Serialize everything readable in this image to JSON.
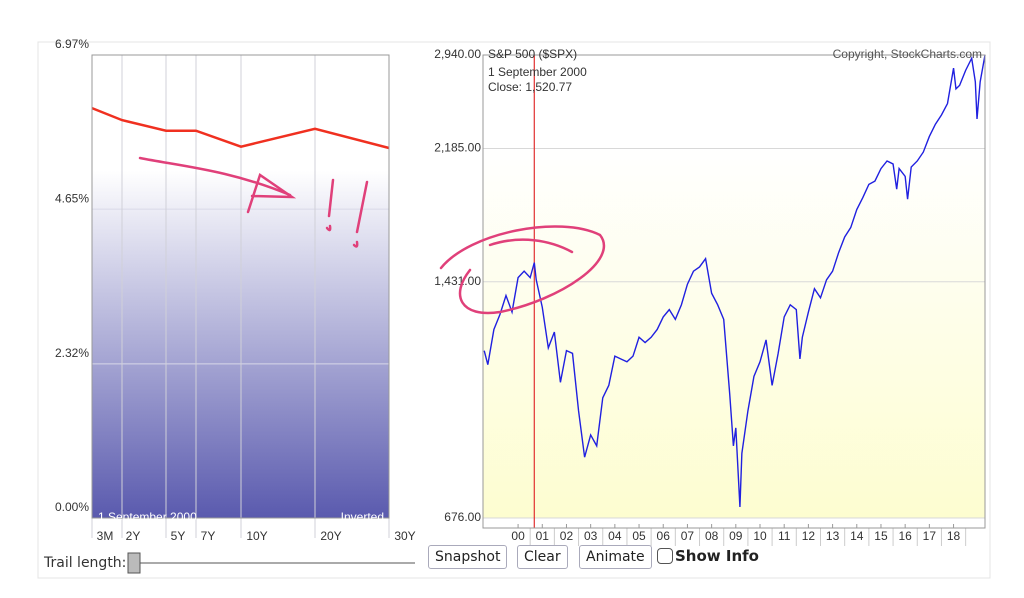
{
  "chart_data": [
    {
      "type": "line",
      "categories": [
        "3M",
        "2Y",
        "5Y",
        "7Y",
        "10Y",
        "20Y",
        "30Y"
      ],
      "values": [
        6.17,
        5.99,
        5.83,
        5.83,
        5.59,
        5.86,
        5.57
      ],
      "color": "#f03020",
      "ylim": [
        0,
        6.97
      ],
      "yticks": [
        {
          "value": 0,
          "label": "0.00%"
        },
        {
          "value": 2.32,
          "label": "2.32%"
        },
        {
          "value": 4.65,
          "label": "4.65%"
        },
        {
          "value": 6.97,
          "label": "6.97%"
        }
      ],
      "grid": true,
      "date_label": "1  September 2000",
      "mode_label": "Inverted"
    },
    {
      "type": "line",
      "title": "S&P 500 ($SPX)",
      "copyright": "Copyright, StockCharts.com",
      "date_label": "1  September 2000",
      "close_label": "Close: 1,520.77",
      "cursor_x": 2000.67,
      "x": [
        1998.6,
        1998.75,
        1999.0,
        1999.25,
        1999.5,
        1999.75,
        2000.0,
        2000.25,
        2000.5,
        2000.67,
        2000.75,
        2001.0,
        2001.25,
        2001.5,
        2001.75,
        2002.0,
        2002.25,
        2002.5,
        2002.75,
        2003.0,
        2003.25,
        2003.5,
        2003.75,
        2004.0,
        2004.25,
        2004.5,
        2004.75,
        2005.0,
        2005.25,
        2005.5,
        2005.75,
        2006.0,
        2006.25,
        2006.5,
        2006.75,
        2007.0,
        2007.25,
        2007.5,
        2007.75,
        2008.0,
        2008.25,
        2008.5,
        2008.75,
        2008.9,
        2009.0,
        2009.17,
        2009.25,
        2009.5,
        2009.75,
        2010.0,
        2010.25,
        2010.5,
        2010.75,
        2011.0,
        2011.25,
        2011.5,
        2011.65,
        2011.75,
        2012.0,
        2012.25,
        2012.5,
        2012.75,
        2013.0,
        2013.25,
        2013.5,
        2013.75,
        2014.0,
        2014.25,
        2014.5,
        2014.75,
        2015.0,
        2015.25,
        2015.5,
        2015.65,
        2015.75,
        2016.0,
        2016.1,
        2016.25,
        2016.5,
        2016.75,
        2017.0,
        2017.25,
        2017.5,
        2017.75,
        2018.0,
        2018.1,
        2018.25,
        2018.5,
        2018.75,
        2018.9,
        2018.97,
        2019.1,
        2019.3
      ],
      "values": [
        1150,
        1100,
        1230,
        1290,
        1370,
        1300,
        1450,
        1480,
        1450,
        1520.77,
        1440,
        1320,
        1160,
        1220,
        1040,
        1150,
        1140,
        950,
        820,
        880,
        850,
        990,
        1030,
        1130,
        1120,
        1110,
        1130,
        1200,
        1180,
        1200,
        1230,
        1280,
        1310,
        1270,
        1330,
        1420,
        1480,
        1500,
        1540,
        1380,
        1330,
        1270,
        1000,
        850,
        900,
        700,
        830,
        950,
        1060,
        1110,
        1190,
        1030,
        1140,
        1280,
        1330,
        1310,
        1120,
        1200,
        1300,
        1400,
        1360,
        1440,
        1480,
        1570,
        1650,
        1700,
        1800,
        1870,
        1950,
        1970,
        2050,
        2100,
        2080,
        1920,
        2050,
        2000,
        1860,
        2060,
        2100,
        2160,
        2270,
        2360,
        2430,
        2520,
        2820,
        2640,
        2670,
        2800,
        2910,
        2700,
        2400,
        2700,
        2940
      ],
      "color": "#2020e0",
      "log_scale": true,
      "xlim": [
        1998.55,
        2019.3
      ],
      "ylim": [
        676,
        2940
      ],
      "xticks": [
        {
          "value": 2000,
          "label": "00"
        },
        {
          "value": 2001,
          "label": "01"
        },
        {
          "value": 2002,
          "label": "02"
        },
        {
          "value": 2003,
          "label": "03"
        },
        {
          "value": 2004,
          "label": "04"
        },
        {
          "value": 2005,
          "label": "05"
        },
        {
          "value": 2006,
          "label": "06"
        },
        {
          "value": 2007,
          "label": "07"
        },
        {
          "value": 2008,
          "label": "08"
        },
        {
          "value": 2009,
          "label": "09"
        },
        {
          "value": 2010,
          "label": "10"
        },
        {
          "value": 2011,
          "label": "11"
        },
        {
          "value": 2012,
          "label": "12"
        },
        {
          "value": 2013,
          "label": "13"
        },
        {
          "value": 2014,
          "label": "14"
        },
        {
          "value": 2015,
          "label": "15"
        },
        {
          "value": 2016,
          "label": "16"
        },
        {
          "value": 2017,
          "label": "17"
        },
        {
          "value": 2018,
          "label": "18"
        }
      ],
      "yticks": [
        {
          "value": 676,
          "label": "676.00"
        },
        {
          "value": 1431,
          "label": "1,431.00"
        },
        {
          "value": 2185,
          "label": "2,185.00"
        },
        {
          "value": 2940,
          "label": "2,940.00"
        }
      ],
      "grid": true
    }
  ],
  "controls": {
    "trail_label": "Trail length:",
    "buttons": [
      "Snapshot",
      "Clear",
      "Animate"
    ],
    "checkbox": "Show Info"
  }
}
